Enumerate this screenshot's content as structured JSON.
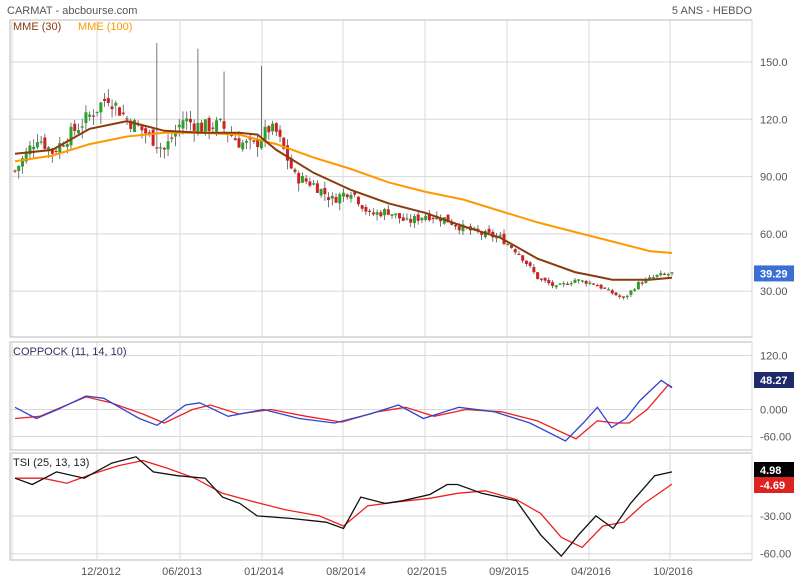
{
  "header": {
    "title": "CARMAT - abcbourse.com",
    "period": "5 ANS - HEBDO"
  },
  "colors": {
    "up": "#2ca02c",
    "down": "#cc2222",
    "mme30": "#8b3a0f",
    "mme100": "#ff9900",
    "coppock_a": "#3344cc",
    "coppock_b": "#ee2222",
    "tsi_a": "#111111",
    "tsi_b": "#ee2222",
    "grid": "#d8d8d8",
    "label_text": "#555555",
    "badge_blue": "#3b6fd6",
    "badge_navy": "#1f2a6b",
    "badge_black": "#000000",
    "badge_red": "#dd2222"
  },
  "chart_data": [
    {
      "id": "price",
      "type": "candlestick",
      "legend": [
        {
          "label": "MME (30)",
          "color": "#8b3a0f"
        },
        {
          "label": "MME (100)",
          "color": "#ff9900"
        }
      ],
      "yticks": [
        "150.0",
        "120.0",
        "90.00",
        "60.00",
        "30.00"
      ],
      "ylim": [
        6,
        172
      ],
      "last_value": "39.29",
      "close_anchors": [
        [
          0,
          93
        ],
        [
          6,
          111
        ],
        [
          10,
          103
        ],
        [
          20,
          122
        ],
        [
          25,
          132
        ],
        [
          30,
          120
        ],
        [
          35,
          113
        ],
        [
          40,
          104
        ],
        [
          45,
          120
        ],
        [
          50,
          116
        ],
        [
          55,
          117
        ],
        [
          60,
          108
        ],
        [
          64,
          106
        ],
        [
          68,
          115
        ],
        [
          70,
          113
        ],
        [
          75,
          90
        ],
        [
          80,
          86
        ],
        [
          85,
          78
        ],
        [
          90,
          83
        ],
        [
          95,
          70
        ],
        [
          100,
          72
        ],
        [
          105,
          66
        ],
        [
          110,
          70
        ],
        [
          115,
          68
        ],
        [
          120,
          63
        ],
        [
          125,
          60
        ],
        [
          130,
          58
        ],
        [
          135,
          50
        ],
        [
          140,
          37
        ],
        [
          145,
          32
        ],
        [
          150,
          36
        ],
        [
          155,
          34
        ],
        [
          159,
          30
        ],
        [
          163,
          26
        ],
        [
          167,
          34
        ],
        [
          172,
          38
        ],
        [
          176,
          39.29
        ]
      ],
      "spikes": [
        [
          38,
          160
        ],
        [
          49,
          157
        ],
        [
          56,
          145
        ],
        [
          66,
          148
        ]
      ],
      "mme30": [
        [
          0,
          102
        ],
        [
          10,
          104
        ],
        [
          20,
          115
        ],
        [
          30,
          119
        ],
        [
          40,
          114
        ],
        [
          50,
          113
        ],
        [
          60,
          113
        ],
        [
          65,
          112
        ],
        [
          70,
          104
        ],
        [
          80,
          92
        ],
        [
          90,
          83
        ],
        [
          100,
          76
        ],
        [
          110,
          71
        ],
        [
          120,
          64
        ],
        [
          130,
          58
        ],
        [
          140,
          47
        ],
        [
          150,
          40
        ],
        [
          155,
          38
        ],
        [
          160,
          36
        ],
        [
          165,
          36
        ],
        [
          170,
          36
        ],
        [
          176,
          37
        ]
      ],
      "mme100": [
        [
          0,
          98
        ],
        [
          10,
          101
        ],
        [
          20,
          107
        ],
        [
          30,
          111
        ],
        [
          40,
          113
        ],
        [
          50,
          113
        ],
        [
          60,
          112
        ],
        [
          70,
          107
        ],
        [
          80,
          100
        ],
        [
          90,
          94
        ],
        [
          100,
          87
        ],
        [
          110,
          82
        ],
        [
          120,
          78
        ],
        [
          130,
          72
        ],
        [
          140,
          66
        ],
        [
          150,
          61
        ],
        [
          160,
          56
        ],
        [
          170,
          51
        ],
        [
          176,
          50
        ]
      ]
    },
    {
      "id": "coppock",
      "type": "line",
      "legend_text": "COPPOCK (11, 14, 10)",
      "yticks": [
        "120.0",
        "0.000",
        "-60.00"
      ],
      "ylim": [
        -90,
        150
      ],
      "series": [
        {
          "values": [
            [
              0,
              5
            ],
            [
              6,
              -20
            ],
            [
              12,
              0
            ],
            [
              20,
              30
            ],
            [
              25,
              25
            ],
            [
              35,
              -20
            ],
            [
              40,
              -35
            ],
            [
              48,
              10
            ],
            [
              52,
              15
            ],
            [
              60,
              -15
            ],
            [
              70,
              0
            ],
            [
              80,
              -20
            ],
            [
              90,
              -30
            ],
            [
              100,
              -10
            ],
            [
              108,
              10
            ],
            [
              115,
              -20
            ],
            [
              125,
              5
            ],
            [
              135,
              -5
            ],
            [
              145,
              -30
            ],
            [
              155,
              -70
            ],
            [
              160,
              -30
            ],
            [
              164,
              5
            ],
            [
              168,
              -40
            ],
            [
              172,
              -20
            ],
            [
              176,
              20
            ],
            [
              182,
              65
            ],
            [
              185,
              48.27
            ]
          ]
        },
        {
          "values": [
            [
              0,
              -20
            ],
            [
              7,
              -15
            ],
            [
              13,
              5
            ],
            [
              20,
              28
            ],
            [
              27,
              15
            ],
            [
              36,
              -10
            ],
            [
              42,
              -30
            ],
            [
              50,
              0
            ],
            [
              55,
              10
            ],
            [
              63,
              -10
            ],
            [
              72,
              0
            ],
            [
              82,
              -15
            ],
            [
              92,
              -28
            ],
            [
              102,
              -5
            ],
            [
              110,
              5
            ],
            [
              118,
              -15
            ],
            [
              127,
              0
            ],
            [
              137,
              -5
            ],
            [
              147,
              -25
            ],
            [
              158,
              -65
            ],
            [
              164,
              -25
            ],
            [
              169,
              -30
            ],
            [
              173,
              -30
            ],
            [
              178,
              0
            ],
            [
              184,
              55
            ],
            [
              185,
              50
            ]
          ]
        }
      ],
      "badges": [
        {
          "value": "48.27"
        }
      ]
    },
    {
      "id": "tsi",
      "type": "line",
      "legend_text": "TSI (25, 13, 13)",
      "yticks": [
        "-30.00",
        "-60.00"
      ],
      "ylim": [
        -65,
        20
      ],
      "series": [
        {
          "values": [
            [
              0,
              0
            ],
            [
              5,
              -5
            ],
            [
              12,
              5
            ],
            [
              20,
              0
            ],
            [
              28,
              12
            ],
            [
              35,
              17
            ],
            [
              40,
              5
            ],
            [
              47,
              2
            ],
            [
              55,
              0
            ],
            [
              60,
              -15
            ],
            [
              65,
              -20
            ],
            [
              70,
              -30
            ],
            [
              80,
              -32
            ],
            [
              90,
              -35
            ],
            [
              95,
              -40
            ],
            [
              100,
              -15
            ],
            [
              107,
              -20
            ],
            [
              112,
              -18
            ],
            [
              120,
              -13
            ],
            [
              125,
              -5
            ],
            [
              128,
              -5
            ],
            [
              135,
              -12
            ],
            [
              145,
              -18
            ],
            [
              152,
              -45
            ],
            [
              158,
              -62
            ],
            [
              163,
              -45
            ],
            [
              168,
              -30
            ],
            [
              173,
              -40
            ],
            [
              178,
              -20
            ],
            [
              185,
              2
            ],
            [
              190,
              4.98
            ]
          ]
        },
        {
          "values": [
            [
              0,
              0
            ],
            [
              8,
              0
            ],
            [
              15,
              -4
            ],
            [
              22,
              3
            ],
            [
              30,
              10
            ],
            [
              37,
              14
            ],
            [
              44,
              8
            ],
            [
              52,
              0
            ],
            [
              60,
              -12
            ],
            [
              68,
              -18
            ],
            [
              78,
              -25
            ],
            [
              88,
              -30
            ],
            [
              95,
              -38
            ],
            [
              102,
              -22
            ],
            [
              110,
              -19
            ],
            [
              120,
              -16
            ],
            [
              128,
              -12
            ],
            [
              136,
              -10
            ],
            [
              145,
              -17
            ],
            [
              152,
              -28
            ],
            [
              158,
              -47
            ],
            [
              164,
              -55
            ],
            [
              170,
              -38
            ],
            [
              176,
              -35
            ],
            [
              182,
              -20
            ],
            [
              190,
              -4.69
            ]
          ]
        }
      ],
      "badges": [
        {
          "value": "4.98"
        },
        {
          "value": "-4.69"
        }
      ]
    }
  ],
  "xaxis": {
    "labels": [
      "12/2012",
      "06/2013",
      "01/2014",
      "08/2014",
      "02/2015",
      "09/2015",
      "04/2016",
      "10/2016"
    ]
  }
}
